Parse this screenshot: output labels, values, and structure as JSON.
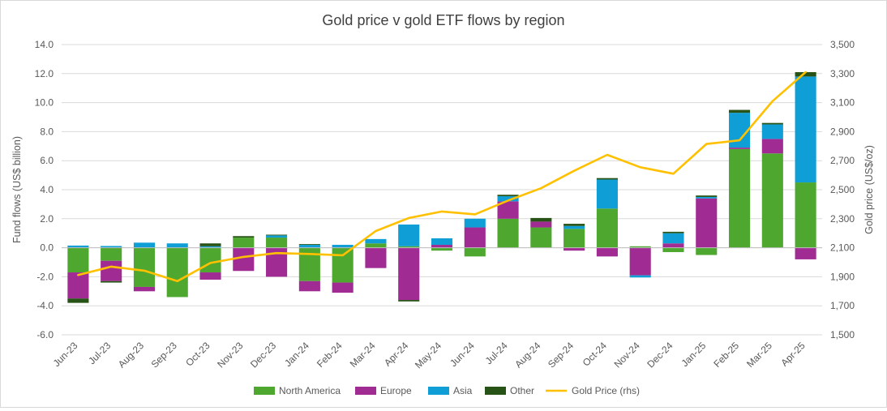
{
  "chart_data": {
    "type": "bar",
    "stacked": true,
    "title": "Gold price v gold ETF flows by region",
    "ylabel": "Fund flows (US$ billion)",
    "y2label": "Gold price (US$/oz)",
    "ylim": [
      -6,
      14
    ],
    "y2lim": [
      1500,
      3500
    ],
    "yticks": [
      "14.0",
      "12.0",
      "10.0",
      "8.0",
      "6.0",
      "4.0",
      "2.0",
      "0.0",
      "-2.0",
      "-4.0",
      "-6.0"
    ],
    "y2ticks": [
      "3,500",
      "3,300",
      "3,100",
      "2,900",
      "2,700",
      "2,500",
      "2,300",
      "2,100",
      "1,900",
      "1,700",
      "1,500"
    ],
    "grid": true,
    "legend_position": "bottom",
    "categories": [
      "Jun-23",
      "Jul-23",
      "Aug-23",
      "Sep-23",
      "Oct-23",
      "Nov-23",
      "Dec-23",
      "Jan-24",
      "Feb-24",
      "Mar-24",
      "Apr-24",
      "May-24",
      "Jun-24",
      "Jul-24",
      "Aug-24",
      "Sep-24",
      "Oct-24",
      "Nov-24",
      "Dec-24",
      "Jan-25",
      "Feb-25",
      "Mar-25",
      "Apr-25"
    ],
    "series": [
      {
        "name": "North America",
        "color": "#4ea72e",
        "values": [
          -1.7,
          -0.9,
          -2.7,
          -3.4,
          -1.7,
          0.7,
          0.7,
          -2.3,
          -2.4,
          0.3,
          0.1,
          -0.2,
          -0.6,
          2.0,
          1.4,
          1.3,
          2.7,
          0.1,
          -0.3,
          -0.5,
          6.8,
          6.5,
          4.5
        ]
      },
      {
        "name": "Europe",
        "color": "#a02b93",
        "values": [
          -1.8,
          -1.4,
          -0.3,
          0.0,
          -0.5,
          -1.6,
          -2.0,
          -0.7,
          -0.7,
          -1.4,
          -3.6,
          0.2,
          1.4,
          1.2,
          0.4,
          -0.2,
          -0.6,
          -1.9,
          0.3,
          3.4,
          0.1,
          1.0,
          -0.8
        ]
      },
      {
        "name": "Asia",
        "color": "#0f9ed5",
        "values": [
          0.15,
          0.12,
          0.35,
          0.3,
          0.1,
          0.0,
          0.15,
          0.2,
          0.2,
          0.3,
          1.5,
          0.45,
          0.6,
          0.35,
          0.0,
          0.2,
          2.0,
          -0.15,
          0.7,
          0.1,
          2.4,
          1.0,
          7.3
        ]
      },
      {
        "name": "Other",
        "color": "#275317",
        "values": [
          -0.3,
          -0.1,
          0.0,
          0.0,
          0.2,
          0.1,
          0.05,
          0.05,
          0.0,
          0.0,
          -0.1,
          0.0,
          0.0,
          0.1,
          0.25,
          0.15,
          0.1,
          0.0,
          0.1,
          0.1,
          0.2,
          0.1,
          0.3
        ]
      },
      {
        "name": "Gold Price (rhs)",
        "color": "#ffc000",
        "axis": "right",
        "type": "line",
        "values": [
          1912,
          1970,
          1942,
          1870,
          1995,
          2037,
          2063,
          2057,
          2048,
          2215,
          2305,
          2350,
          2330,
          2425,
          2510,
          2630,
          2740,
          2655,
          2610,
          2815,
          2840,
          3110,
          3310
        ]
      }
    ]
  }
}
